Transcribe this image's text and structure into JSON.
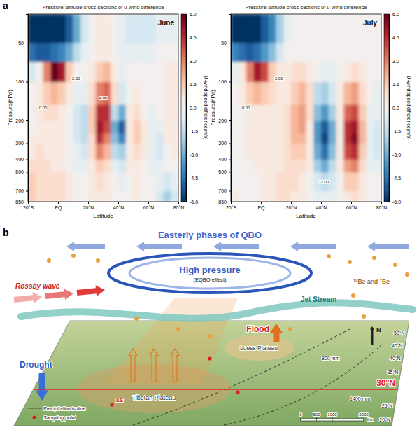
{
  "panel_a_label": "a",
  "chart_data": [
    {
      "type": "heatmap",
      "title": "Pressure-latitude cross sections of u-wind difference",
      "subtitle": "June",
      "x_label": "Latitude",
      "y_label": "Pressure(hPa)",
      "xlim": [
        -20,
        80
      ],
      "ylim": [
        850,
        30
      ],
      "log": "y",
      "xticks": [
        {
          "value": -20,
          "label": "20°S"
        },
        {
          "value": 0,
          "label": "EQ"
        },
        {
          "value": 20,
          "label": "20°N"
        },
        {
          "value": 40,
          "label": "40°N"
        },
        {
          "value": 60,
          "label": "60°N"
        },
        {
          "value": 80,
          "label": "80°N"
        }
      ],
      "yticks": [
        50,
        100,
        200,
        300,
        400,
        500,
        700,
        850
      ],
      "x_edges": [
        -20,
        -15,
        -10,
        -5,
        0,
        5,
        10,
        15,
        20,
        25,
        30,
        35,
        40,
        45,
        50,
        55,
        60,
        65,
        70,
        75,
        80
      ],
      "y_edges": [
        850,
        700,
        500,
        400,
        300,
        250,
        200,
        150,
        100,
        70,
        50,
        30
      ],
      "cells": [
        [
          1.5,
          1,
          1,
          1,
          1,
          0.5,
          0,
          0,
          0.5,
          0.5,
          0.5,
          0,
          0,
          0,
          0.5,
          0,
          0,
          -1,
          -2,
          -1
        ],
        [
          1.5,
          1,
          1,
          1,
          1,
          0.5,
          0,
          0,
          0.5,
          1,
          0.5,
          0,
          -0.5,
          0,
          0.5,
          0,
          0,
          -0.5,
          -1,
          -0.5
        ],
        [
          1,
          1,
          1,
          0.5,
          0.5,
          0,
          -0.5,
          -0.5,
          0.5,
          1.5,
          1,
          -0.5,
          -1,
          0.5,
          0.5,
          0,
          -0.5,
          -0.5,
          0,
          0
        ],
        [
          0.5,
          1,
          0.5,
          0.5,
          0.5,
          0,
          -0.5,
          -1,
          1,
          3,
          2,
          -1.5,
          -2,
          0.5,
          1,
          0.5,
          -0.5,
          -1,
          0,
          0.5
        ],
        [
          0.5,
          0.5,
          0.5,
          0.5,
          0.5,
          0,
          -1,
          -1.5,
          1,
          4.5,
          3,
          -2.5,
          -4,
          0.5,
          1.5,
          0.5,
          -0.5,
          -1,
          0.5,
          0.5
        ],
        [
          0,
          0.5,
          0.5,
          0.5,
          0.5,
          0,
          -1,
          -1.5,
          1.5,
          5,
          4,
          -3,
          -5,
          0.5,
          1.5,
          0.5,
          -0.5,
          -0.5,
          0.5,
          0.5
        ],
        [
          0,
          0.5,
          1,
          1,
          0.5,
          0,
          -1,
          -1.5,
          1.5,
          4.5,
          4.5,
          -1.5,
          -3,
          0.5,
          1,
          0,
          -0.5,
          0,
          0.5,
          0.5
        ],
        [
          0,
          0.5,
          1.5,
          2,
          1.5,
          0.5,
          -0.5,
          -0.5,
          1,
          3,
          3.5,
          1,
          -1,
          0,
          0.5,
          0,
          0,
          0,
          0.5,
          0.5
        ],
        [
          -1,
          0,
          3,
          6,
          5,
          1.5,
          0,
          0,
          0.5,
          1.5,
          2,
          0.5,
          -0.5,
          0,
          0,
          0,
          0,
          0,
          0.5,
          0.5
        ],
        [
          -4.5,
          -5,
          -5,
          -4.5,
          -4,
          -3,
          -1.5,
          -0.5,
          0,
          0.5,
          0.5,
          0,
          -0.5,
          -0.5,
          -0.5,
          -0.5,
          -0.5,
          0,
          0,
          0
        ],
        [
          -6,
          -6,
          -6,
          -6,
          -6,
          -5,
          -3,
          -1,
          0,
          0.5,
          0.5,
          0,
          -0.5,
          -1,
          -1,
          -1,
          -1,
          -0.5,
          -0.5,
          -0.5
        ]
      ],
      "colorbar": {
        "label": "U-wind speed difference(m/s)",
        "range": [
          -6,
          6
        ],
        "ticks": [
          {
            "value": 6,
            "label": "6.0"
          },
          {
            "value": 4.5,
            "label": "4.5"
          },
          {
            "value": 3,
            "label": "3.0"
          },
          {
            "value": 1.5,
            "label": "1.5"
          },
          {
            "value": 0,
            "label": "0.0"
          },
          {
            "value": -1.5,
            "label": "-1.5"
          },
          {
            "value": -3,
            "label": "-3.0"
          },
          {
            "value": -4.5,
            "label": "-4.5"
          },
          {
            "value": -6,
            "label": "-6.0"
          }
        ]
      },
      "annotations": [
        {
          "text": "0.00",
          "x": -10,
          "y": 160
        },
        {
          "text": "2.00",
          "x": 12,
          "y": 95
        },
        {
          "text": "4.00",
          "x": 30,
          "y": 135
        }
      ]
    },
    {
      "type": "heatmap",
      "title": "Pressure-latitude cross sections of u-wind difference",
      "subtitle": "July",
      "x_label": "Latitude",
      "y_label": "Pressure(hPa)",
      "xlim": [
        -20,
        80
      ],
      "ylim": [
        850,
        30
      ],
      "log": "y",
      "xticks": [
        {
          "value": -20,
          "label": "20°S"
        },
        {
          "value": 0,
          "label": "EQ"
        },
        {
          "value": 20,
          "label": "20°N"
        },
        {
          "value": 40,
          "label": "40°N"
        },
        {
          "value": 60,
          "label": "60°N"
        },
        {
          "value": 80,
          "label": "80°N"
        }
      ],
      "yticks": [
        50,
        100,
        200,
        300,
        400,
        500,
        700,
        850
      ],
      "x_edges": [
        -20,
        -15,
        -10,
        -5,
        0,
        5,
        10,
        15,
        20,
        25,
        30,
        35,
        40,
        45,
        50,
        55,
        60,
        65,
        70,
        75,
        80
      ],
      "y_edges": [
        850,
        700,
        500,
        400,
        300,
        250,
        200,
        150,
        100,
        70,
        50,
        30
      ],
      "cells": [
        [
          0.5,
          0,
          0,
          0,
          0.5,
          0.5,
          1,
          1,
          0.5,
          0.5,
          0,
          -0.5,
          -0.5,
          -0.5,
          0,
          0.5,
          1,
          0.5,
          0,
          0
        ],
        [
          0,
          0,
          0,
          0,
          0.5,
          0.5,
          1,
          1,
          1,
          0.5,
          0,
          -1,
          -1.5,
          -1,
          0,
          1.5,
          1.5,
          0.5,
          0,
          0
        ],
        [
          0,
          0,
          0,
          0.5,
          0.5,
          0.5,
          0.5,
          1,
          1,
          1,
          0.5,
          -2,
          -3,
          -1.5,
          0.5,
          2.5,
          3,
          1,
          -0.5,
          -0.5
        ],
        [
          0,
          0,
          0.5,
          0.5,
          0.5,
          0.5,
          0.5,
          1,
          1.5,
          1.5,
          0.5,
          -3,
          -4.5,
          -2.5,
          0.5,
          4,
          4.5,
          1.5,
          -0.5,
          -1
        ],
        [
          0,
          0,
          0.5,
          0.5,
          0.5,
          0.5,
          0.5,
          1,
          2,
          2,
          0.5,
          -3.5,
          -5.5,
          -3,
          0.5,
          4.5,
          5.5,
          2,
          -0.5,
          -1
        ],
        [
          0,
          0,
          0.5,
          0.5,
          0.5,
          0.5,
          0.5,
          1,
          2,
          2.5,
          0.5,
          -3.5,
          -5,
          -3,
          0.5,
          4.5,
          5,
          2,
          -0.5,
          -1
        ],
        [
          0,
          0,
          0.5,
          0.5,
          0.5,
          0.5,
          0.5,
          1,
          2,
          2.5,
          1,
          -2.5,
          -3.5,
          -2,
          0.5,
          3.5,
          4,
          1.5,
          -0.5,
          -0.5
        ],
        [
          0,
          0.5,
          1.5,
          2,
          1.5,
          1,
          0.5,
          0.5,
          1.5,
          2,
          1,
          -1.5,
          -2,
          -1,
          0.5,
          2,
          2.5,
          1,
          0,
          -0.5
        ],
        [
          -0.5,
          0.5,
          3,
          5,
          4,
          1.5,
          0.5,
          0.5,
          1,
          1,
          0.5,
          0,
          -0.5,
          -0.5,
          0,
          0.5,
          1,
          0.5,
          0,
          0
        ],
        [
          -4,
          -4.5,
          -5,
          -4.5,
          -3.5,
          -2.5,
          -1,
          0,
          0,
          0,
          0,
          0,
          0,
          0,
          0,
          0,
          0,
          0,
          0,
          0
        ],
        [
          -6,
          -6,
          -6,
          -6,
          -5,
          -4,
          -2,
          -0.5,
          0,
          0,
          0,
          0,
          0,
          0,
          0,
          0,
          0,
          0,
          0,
          0
        ]
      ],
      "colorbar": {
        "label": "U-wind speed difference(m/s)",
        "range": [
          -6,
          6
        ],
        "ticks": [
          {
            "value": 6,
            "label": "6.0"
          },
          {
            "value": 4.5,
            "label": "4.5"
          },
          {
            "value": 3,
            "label": "3.0"
          },
          {
            "value": 1.5,
            "label": "1.5"
          },
          {
            "value": 0,
            "label": "0.0"
          },
          {
            "value": -1.5,
            "label": "-1.5"
          },
          {
            "value": -3,
            "label": "-3.0"
          },
          {
            "value": -4.5,
            "label": "-4.5"
          },
          {
            "value": -6,
            "label": "-6.0"
          }
        ]
      },
      "annotations": [
        {
          "text": "0.00",
          "x": -10,
          "y": 160
        },
        {
          "text": "2.00",
          "x": 12,
          "y": 95
        },
        {
          "text": "-2.00",
          "x": 42,
          "y": 600
        }
      ]
    }
  ],
  "diagram": {
    "label": "b",
    "qbo": "Easterly phases of QBO",
    "high_pressure": "High pressure",
    "high_pressure_note": "(EQBO effect)",
    "rossby": "Rossby wave",
    "isotopes": "¹⁰Be and ⁷Be",
    "jet_stream": "Jet Stream",
    "flood": "Flood",
    "drought": "Drought",
    "tibet": "Tibetan Plateau",
    "loess": "Loess Plateau",
    "north": "N",
    "latitudes": [
      "50°N",
      "45°N",
      "40°N",
      "35°N",
      "25°N",
      "20°N"
    ],
    "highlight_latitude": "30°N",
    "site": "LS",
    "isolines": [
      "800 mm",
      "1400 mm"
    ],
    "key_items": {
      "isoline": "Precipitation isoline",
      "sampling": "Sampling point"
    },
    "scale_bar": {
      "ticks": [
        0,
        500,
        1000,
        2000
      ],
      "unit": "Km"
    }
  }
}
